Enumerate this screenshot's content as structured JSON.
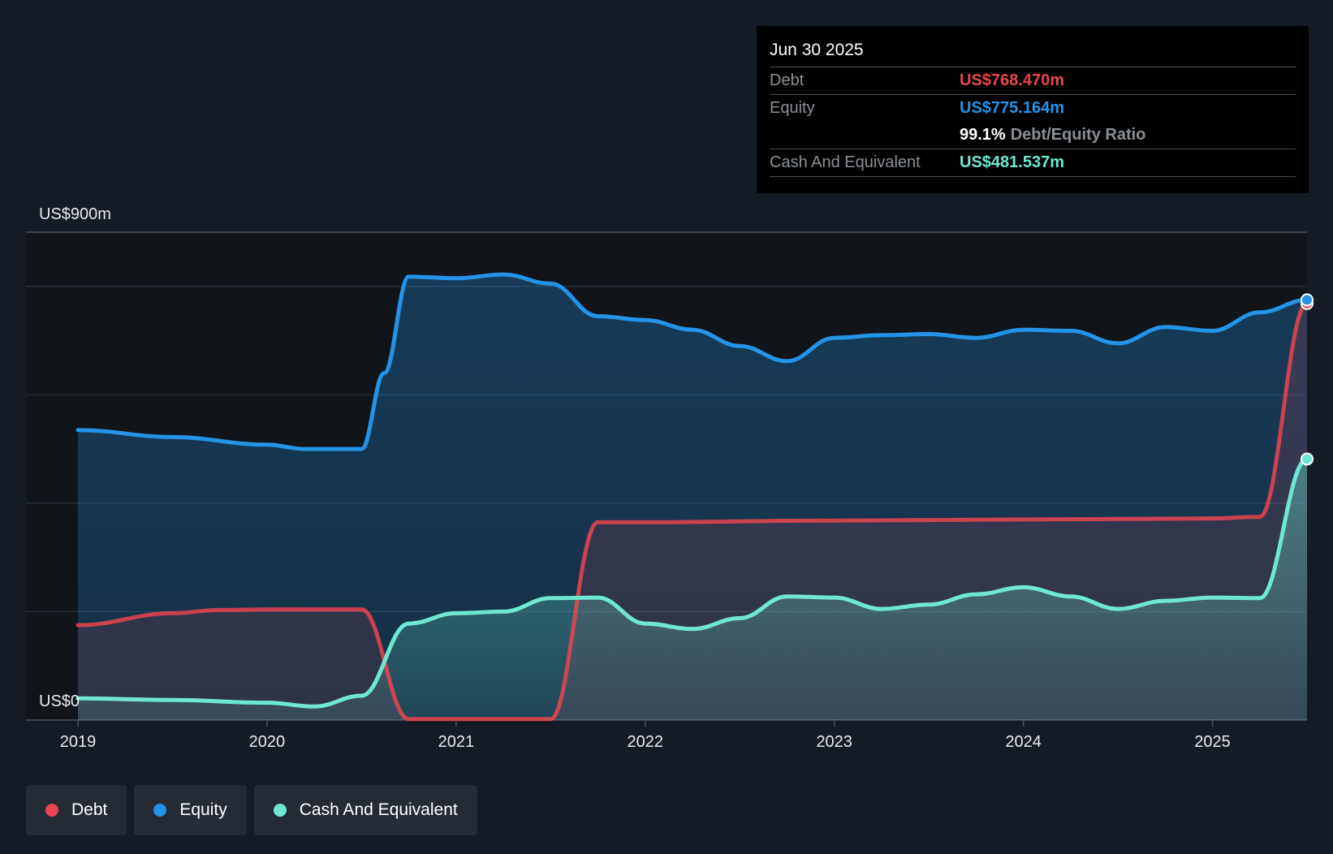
{
  "chart_data": {
    "type": "area",
    "title": "",
    "y_unit_label_top": "US$900m",
    "y_unit_label_bottom": "US$0",
    "ylim": [
      0,
      900
    ],
    "x_range": [
      2019.0,
      2025.5
    ],
    "x_ticks": [
      "2019",
      "2020",
      "2021",
      "2022",
      "2023",
      "2024",
      "2025"
    ],
    "gridlines": [
      0,
      200,
      400,
      600,
      800,
      900
    ],
    "colors": {
      "debt": "#e8454f",
      "equity": "#2394e8",
      "cash": "#6ee8d2",
      "background": "#151b24",
      "plot_background": "#111419"
    },
    "series": [
      {
        "name": "Equity",
        "key": "equity",
        "points": [
          [
            2019.0,
            535
          ],
          [
            2019.5,
            522
          ],
          [
            2020.0,
            508
          ],
          [
            2020.2,
            500
          ],
          [
            2020.5,
            500
          ],
          [
            2020.62,
            640
          ],
          [
            2020.75,
            818
          ],
          [
            2021.0,
            815
          ],
          [
            2021.25,
            822
          ],
          [
            2021.5,
            805
          ],
          [
            2021.75,
            745
          ],
          [
            2022.0,
            738
          ],
          [
            2022.25,
            720
          ],
          [
            2022.5,
            690
          ],
          [
            2022.75,
            662
          ],
          [
            2023.0,
            705
          ],
          [
            2023.25,
            710
          ],
          [
            2023.5,
            712
          ],
          [
            2023.75,
            705
          ],
          [
            2024.0,
            720
          ],
          [
            2024.25,
            718
          ],
          [
            2024.5,
            695
          ],
          [
            2024.75,
            725
          ],
          [
            2025.0,
            718
          ],
          [
            2025.25,
            752
          ],
          [
            2025.5,
            775.164
          ]
        ]
      },
      {
        "name": "Debt",
        "key": "debt",
        "points": [
          [
            2019.0,
            175
          ],
          [
            2019.5,
            197
          ],
          [
            2019.75,
            203
          ],
          [
            2020.0,
            204
          ],
          [
            2020.5,
            204
          ],
          [
            2020.75,
            2
          ],
          [
            2021.0,
            2
          ],
          [
            2021.5,
            2
          ],
          [
            2021.75,
            365
          ],
          [
            2022.0,
            365
          ],
          [
            2023.0,
            368
          ],
          [
            2024.0,
            370
          ],
          [
            2025.0,
            372
          ],
          [
            2025.25,
            375
          ],
          [
            2025.5,
            768.47
          ]
        ]
      },
      {
        "name": "Cash And Equivalent",
        "key": "cash",
        "points": [
          [
            2019.0,
            40
          ],
          [
            2019.5,
            37
          ],
          [
            2020.0,
            32
          ],
          [
            2020.25,
            25
          ],
          [
            2020.5,
            45
          ],
          [
            2020.75,
            178
          ],
          [
            2021.0,
            197
          ],
          [
            2021.25,
            200
          ],
          [
            2021.5,
            225
          ],
          [
            2021.75,
            226
          ],
          [
            2022.0,
            178
          ],
          [
            2022.25,
            168
          ],
          [
            2022.5,
            188
          ],
          [
            2022.75,
            228
          ],
          [
            2023.0,
            226
          ],
          [
            2023.25,
            205
          ],
          [
            2023.5,
            213
          ],
          [
            2023.75,
            232
          ],
          [
            2024.0,
            245
          ],
          [
            2024.25,
            228
          ],
          [
            2024.5,
            205
          ],
          [
            2024.75,
            220
          ],
          [
            2025.0,
            226
          ],
          [
            2025.25,
            225
          ],
          [
            2025.5,
            481.537
          ]
        ]
      }
    ]
  },
  "tooltip": {
    "date": "Jun 30 2025",
    "debt_label": "Debt",
    "debt_value": "US$768.470m",
    "equity_label": "Equity",
    "equity_value": "US$775.164m",
    "ratio_value": "99.1%",
    "ratio_label": "Debt/Equity Ratio",
    "cash_label": "Cash And Equivalent",
    "cash_value": "US$481.537m"
  },
  "legend": {
    "items": [
      {
        "label": "Debt",
        "color": "#e8454f"
      },
      {
        "label": "Equity",
        "color": "#2394e8"
      },
      {
        "label": "Cash And Equivalent",
        "color": "#6ee8d2"
      }
    ]
  }
}
